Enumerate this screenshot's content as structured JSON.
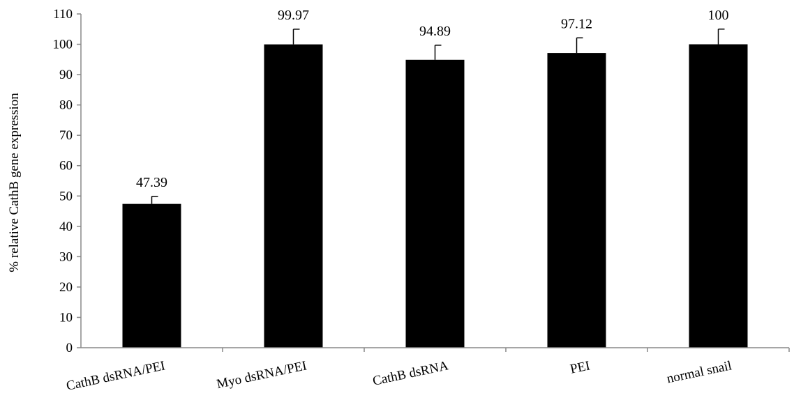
{
  "chart_data": {
    "type": "bar",
    "title": "",
    "xlabel": "",
    "ylabel": "% relative CathB gene expression",
    "ylim": [
      0,
      110
    ],
    "yticks": [
      0,
      10,
      20,
      30,
      40,
      50,
      60,
      70,
      80,
      90,
      100,
      110
    ],
    "grid": false,
    "legend": "none",
    "bar_color": "#000000",
    "categories": [
      "CathB dsRNA/PEI",
      "Myo dsRNA/PEI",
      "CathB dsRNA",
      "PEI",
      "normal snail"
    ],
    "values": [
      47.39,
      99.97,
      94.89,
      97.12,
      100
    ],
    "value_labels": [
      "47.39",
      "99.97",
      "94.89",
      "97.12",
      "100"
    ],
    "error_upper": [
      2.5,
      5,
      4.8,
      5,
      5
    ]
  }
}
